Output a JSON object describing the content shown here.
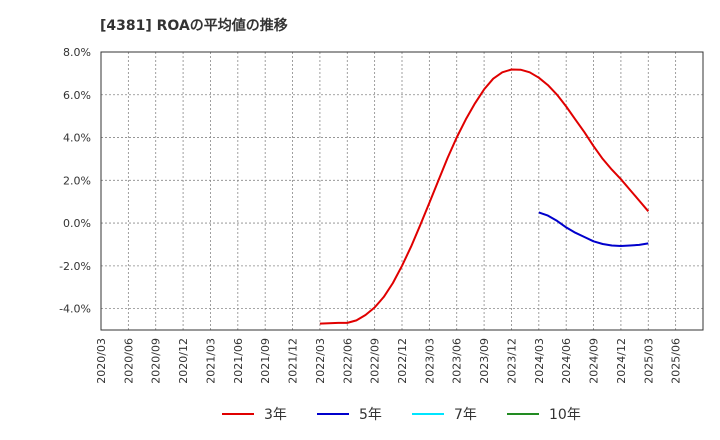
{
  "chart_data": {
    "type": "line",
    "title": "[4381]  ROAの平均値の推移",
    "xlabel": "",
    "ylabel": "",
    "ylim": [
      -5.0,
      8.0
    ],
    "yticks": [
      8.0,
      6.0,
      4.0,
      2.0,
      0.0,
      -2.0,
      -4.0
    ],
    "ytick_labels": [
      "8.0%",
      "6.0%",
      "4.0%",
      "2.0%",
      "0.0%",
      "-2.0%",
      "-4.0%"
    ],
    "x_categories": [
      "2020/03",
      "2020/06",
      "2020/09",
      "2020/12",
      "2021/03",
      "2021/06",
      "2021/09",
      "2021/12",
      "2022/03",
      "2022/06",
      "2022/09",
      "2022/12",
      "2023/03",
      "2023/06",
      "2023/09",
      "2023/12",
      "2024/03",
      "2024/06",
      "2024/09",
      "2024/12",
      "2025/03",
      "2025/06"
    ],
    "grid": true,
    "legend_position": "bottom",
    "series": [
      {
        "name": "3年",
        "color": "#e00000",
        "points": [
          [
            "2022/03",
            -4.7
          ],
          [
            "2022/04",
            -4.68
          ],
          [
            "2022/05",
            -4.67
          ],
          [
            "2022/06",
            -4.67
          ],
          [
            "2022/07",
            -4.55
          ],
          [
            "2022/08",
            -4.3
          ],
          [
            "2022/09",
            -3.95
          ],
          [
            "2022/10",
            -3.45
          ],
          [
            "2022/11",
            -2.8
          ],
          [
            "2022/12",
            -2.0
          ],
          [
            "2023/01",
            -1.1
          ],
          [
            "2023/02",
            -0.1
          ],
          [
            "2023/03",
            0.95
          ],
          [
            "2023/04",
            2.0
          ],
          [
            "2023/05",
            3.05
          ],
          [
            "2023/06",
            4.0
          ],
          [
            "2023/07",
            4.85
          ],
          [
            "2023/08",
            5.6
          ],
          [
            "2023/09",
            6.25
          ],
          [
            "2023/10",
            6.75
          ],
          [
            "2023/11",
            7.05
          ],
          [
            "2023/12",
            7.18
          ],
          [
            "2024/01",
            7.17
          ],
          [
            "2024/02",
            7.05
          ],
          [
            "2024/03",
            6.8
          ],
          [
            "2024/04",
            6.45
          ],
          [
            "2024/05",
            6.0
          ],
          [
            "2024/06",
            5.45
          ],
          [
            "2024/07",
            4.85
          ],
          [
            "2024/08",
            4.25
          ],
          [
            "2024/09",
            3.6
          ],
          [
            "2024/10",
            3.0
          ],
          [
            "2024/11",
            2.5
          ],
          [
            "2024/12",
            2.05
          ],
          [
            "2025/01",
            1.55
          ],
          [
            "2025/02",
            1.05
          ],
          [
            "2025/03",
            0.55
          ]
        ]
      },
      {
        "name": "5年",
        "color": "#0000cc",
        "points": [
          [
            "2024/03",
            0.5
          ],
          [
            "2024/04",
            0.35
          ],
          [
            "2024/05",
            0.1
          ],
          [
            "2024/06",
            -0.2
          ],
          [
            "2024/07",
            -0.45
          ],
          [
            "2024/08",
            -0.65
          ],
          [
            "2024/09",
            -0.85
          ],
          [
            "2024/10",
            -0.98
          ],
          [
            "2024/11",
            -1.05
          ],
          [
            "2024/12",
            -1.07
          ],
          [
            "2025/01",
            -1.05
          ],
          [
            "2025/02",
            -1.02
          ],
          [
            "2025/03",
            -0.95
          ]
        ]
      },
      {
        "name": "7年",
        "color": "#00e5ff",
        "points": []
      },
      {
        "name": "10年",
        "color": "#228b22",
        "points": []
      }
    ]
  }
}
